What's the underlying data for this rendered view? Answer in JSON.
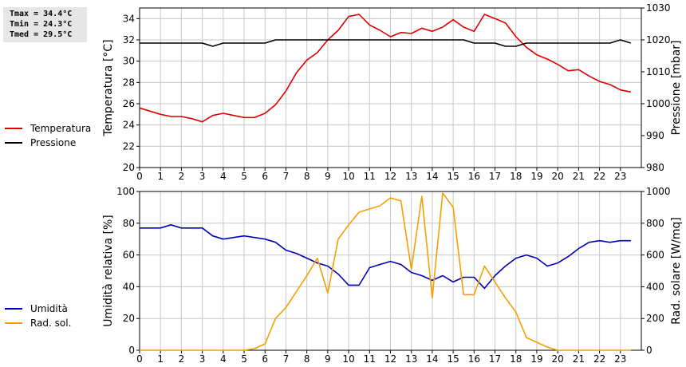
{
  "stats": {
    "tmax": "Tmax = 34.4°C",
    "tmin": "Tmin = 24.3°C",
    "tmed": "Tmed = 29.5°C"
  },
  "colors": {
    "temperature": "#dd0000",
    "pressure": "#000000",
    "humidity": "#0000bb",
    "radiation": "#f5a000",
    "grid": "#c8c8c8"
  },
  "chart_data": [
    {
      "type": "line",
      "xlim": [
        0,
        24
      ],
      "x_ticks": [
        0,
        1,
        2,
        3,
        4,
        5,
        6,
        7,
        8,
        9,
        10,
        11,
        12,
        13,
        14,
        15,
        16,
        17,
        18,
        19,
        20,
        21,
        22,
        23
      ],
      "grid": true,
      "legend_placement": "left",
      "ylabel_left": "Temperatura [°C]",
      "ylabel_right": "Pressione [mbar]",
      "ylim_left": [
        20,
        35
      ],
      "ylim_right": [
        980,
        1030
      ],
      "yticks_left": [
        20,
        22,
        24,
        26,
        28,
        30,
        32,
        34
      ],
      "yticks_right": [
        980,
        990,
        1000,
        1010,
        1020,
        1030
      ],
      "series": [
        {
          "name": "Temperatura",
          "axis": "left",
          "color": "#dd0000",
          "x": [
            0,
            0.5,
            1,
            1.5,
            2,
            2.5,
            3,
            3.5,
            4,
            4.5,
            5,
            5.5,
            6,
            6.5,
            7,
            7.5,
            8,
            8.5,
            9,
            9.5,
            10,
            10.5,
            11,
            11.5,
            12,
            12.5,
            13,
            13.5,
            14,
            14.5,
            15,
            15.5,
            16,
            16.5,
            17,
            17.5,
            18,
            18.5,
            19,
            19.5,
            20,
            20.5,
            21,
            21.5,
            22,
            22.5,
            23,
            23.5
          ],
          "y": [
            25.6,
            25.3,
            25.0,
            24.8,
            24.8,
            24.6,
            24.3,
            24.9,
            25.1,
            24.9,
            24.7,
            24.7,
            25.1,
            25.9,
            27.2,
            28.9,
            30.1,
            30.8,
            32.0,
            32.9,
            34.2,
            34.4,
            33.4,
            32.9,
            32.3,
            32.7,
            32.6,
            33.1,
            32.8,
            33.2,
            33.9,
            33.2,
            32.8,
            34.4,
            34.0,
            33.6,
            32.3,
            31.3,
            30.6,
            30.2,
            29.7,
            29.1,
            29.2,
            28.6,
            28.1,
            27.8,
            27.3,
            27.1
          ]
        },
        {
          "name": "Pressione",
          "axis": "right",
          "color": "#000000",
          "x": [
            0,
            0.5,
            1,
            1.5,
            2,
            2.5,
            3,
            3.5,
            4,
            4.5,
            5,
            5.5,
            6,
            6.5,
            7,
            7.5,
            8,
            8.5,
            9,
            9.5,
            10,
            10.5,
            11,
            11.5,
            12,
            12.5,
            13,
            13.5,
            14,
            14.5,
            15,
            15.5,
            16,
            16.5,
            17,
            17.5,
            18,
            18.5,
            19,
            19.5,
            20,
            20.5,
            21,
            21.5,
            22,
            22.5,
            23,
            23.5
          ],
          "y": [
            1019,
            1019,
            1019,
            1019,
            1019,
            1019,
            1019,
            1018,
            1019,
            1019,
            1019,
            1019,
            1019,
            1020,
            1020,
            1020,
            1020,
            1020,
            1020,
            1020,
            1020,
            1020,
            1020,
            1020,
            1020,
            1020,
            1020,
            1020,
            1020,
            1020,
            1020,
            1020,
            1019,
            1019,
            1019,
            1018,
            1018,
            1019,
            1019,
            1019,
            1019,
            1019,
            1019,
            1019,
            1019,
            1019,
            1020,
            1019
          ]
        }
      ]
    },
    {
      "type": "line",
      "xlim": [
        0,
        24
      ],
      "x_ticks": [
        0,
        1,
        2,
        3,
        4,
        5,
        6,
        7,
        8,
        9,
        10,
        11,
        12,
        13,
        14,
        15,
        16,
        17,
        18,
        19,
        20,
        21,
        22,
        23
      ],
      "grid": true,
      "legend_placement": "left",
      "ylabel_left": "Umidità relativa [%]",
      "ylabel_right": "Rad. solare [W/mq]",
      "ylim_left": [
        0,
        100
      ],
      "ylim_right": [
        0,
        1000
      ],
      "yticks_left": [
        0,
        20,
        40,
        60,
        80,
        100
      ],
      "yticks_right": [
        0,
        200,
        400,
        600,
        800,
        1000
      ],
      "series": [
        {
          "name": "Umidità",
          "axis": "left",
          "color": "#0000bb",
          "x": [
            0,
            0.5,
            1,
            1.5,
            2,
            2.5,
            3,
            3.5,
            4,
            4.5,
            5,
            5.5,
            6,
            6.5,
            7,
            7.5,
            8,
            8.5,
            9,
            9.5,
            10,
            10.5,
            11,
            11.5,
            12,
            12.5,
            13,
            13.5,
            14,
            14.5,
            15,
            15.5,
            16,
            16.5,
            17,
            17.5,
            18,
            18.5,
            19,
            19.5,
            20,
            20.5,
            21,
            21.5,
            22,
            22.5,
            23,
            23.5
          ],
          "y": [
            77,
            77,
            77,
            79,
            77,
            77,
            77,
            72,
            70,
            71,
            72,
            71,
            70,
            68,
            63,
            61,
            58,
            55,
            53,
            48,
            41,
            41,
            52,
            54,
            56,
            54,
            49,
            47,
            44,
            47,
            43,
            46,
            46,
            39,
            47,
            53,
            58,
            60,
            58,
            53,
            55,
            59,
            64,
            68,
            69,
            68,
            69,
            69
          ]
        },
        {
          "name": "Rad. sol.",
          "axis": "right",
          "color": "#f5a000",
          "x": [
            0,
            0.5,
            1,
            1.5,
            2,
            2.5,
            3,
            3.5,
            4,
            4.5,
            5,
            5.5,
            6,
            6.5,
            7,
            7.5,
            8,
            8.5,
            9,
            9.5,
            10,
            10.5,
            11,
            11.5,
            12,
            12.5,
            13,
            13.5,
            14,
            14.5,
            15,
            15.5,
            16,
            16.5,
            17,
            17.5,
            18,
            18.5,
            19,
            19.5,
            20,
            20.5,
            21,
            21.5,
            22,
            22.5,
            23,
            23.5
          ],
          "y": [
            0,
            0,
            0,
            0,
            0,
            0,
            0,
            0,
            0,
            0,
            0,
            10,
            40,
            200,
            270,
            370,
            470,
            580,
            360,
            700,
            790,
            870,
            890,
            910,
            960,
            940,
            510,
            970,
            330,
            990,
            900,
            350,
            350,
            530,
            430,
            330,
            240,
            80,
            50,
            20,
            0,
            0,
            0,
            0,
            0,
            0,
            0,
            0
          ]
        }
      ]
    }
  ]
}
